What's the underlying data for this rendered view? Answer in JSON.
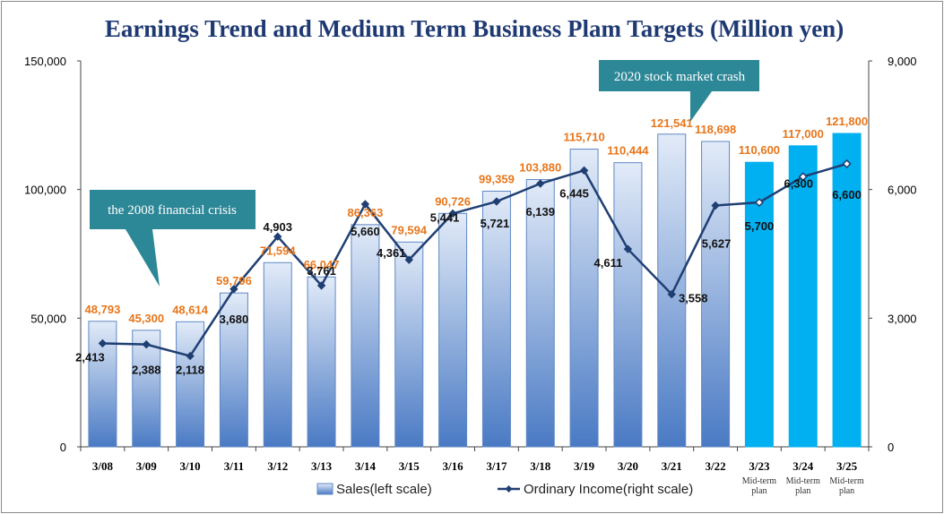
{
  "chart_data": {
    "type": "bar",
    "title": "Earnings Trend and Medium Term Business Plam Targets (Million yen)",
    "categories": [
      "3/08",
      "3/09",
      "3/10",
      "3/11",
      "3/12",
      "3/13",
      "3/14",
      "3/15",
      "3/16",
      "3/17",
      "3/18",
      "3/19",
      "3/20",
      "3/21",
      "3/22",
      "3/23",
      "3/24",
      "3/25"
    ],
    "category_sublabels": [
      "",
      "",
      "",
      "",
      "",
      "",
      "",
      "",
      "",
      "",
      "",
      "",
      "",
      "",
      "",
      "Mid-term plan",
      "Mid-term plan",
      "Mid-term plan"
    ],
    "y_left": {
      "ylim": [
        0,
        150000
      ],
      "ticks": [
        "0",
        "50,000",
        "100,000",
        "150,000"
      ]
    },
    "y_right": {
      "ylim": [
        0,
        9000
      ],
      "ticks": [
        "0",
        "3,000",
        "6,000",
        "9,000"
      ]
    },
    "grid": false,
    "series": [
      {
        "name": "Sales(left scale)",
        "kind": "bar",
        "axis": "left",
        "values": [
          48793,
          45300,
          48614,
          59796,
          71594,
          66047,
          86363,
          79594,
          90726,
          99359,
          103880,
          115710,
          110444,
          121541,
          118698,
          110600,
          117000,
          121800
        ],
        "labels": [
          "48,793",
          "45,300",
          "48,614",
          "59,796",
          "71,594",
          "66,047",
          "86,363",
          "79,594",
          "90,726",
          "99,359",
          "103,880",
          "115,710",
          "110,444",
          "121,541",
          "118,698",
          "110,600",
          "117,000",
          "121,800"
        ]
      },
      {
        "name": "Ordinary Income(right scale)",
        "kind": "line",
        "axis": "right",
        "values": [
          2413,
          2388,
          2118,
          3680,
          4903,
          3761,
          5660,
          4361,
          5441,
          5721,
          6139,
          6445,
          4611,
          3558,
          5627,
          5700,
          6300,
          6600
        ],
        "labels": [
          "2,413",
          "2,388",
          "2,118",
          "3,680",
          "4,903",
          "3,761",
          "5,660",
          "4,361",
          "5,441",
          "5,721",
          "6,139",
          "6,445",
          "4,611",
          "3,558",
          "5,627",
          "5,700",
          "6,300",
          "6,600"
        ]
      }
    ],
    "plan_start_index": 15,
    "annotations": [
      {
        "text": "the 2008 financial crisis",
        "target": "3/09"
      },
      {
        "text": "2020 stock market crash",
        "target": "3/21"
      }
    ],
    "legend_position": "bottom-center",
    "colors": {
      "bar_actual_top": "#e2ebf8",
      "bar_actual_bottom": "#4a7ac4",
      "bar_actual_stroke": "#5f88c4",
      "bar_plan": "#00b0f0",
      "line": "#1f3f73",
      "value_label": "#e8761b",
      "title": "#1f3a73",
      "callout": "#2c8796"
    }
  }
}
